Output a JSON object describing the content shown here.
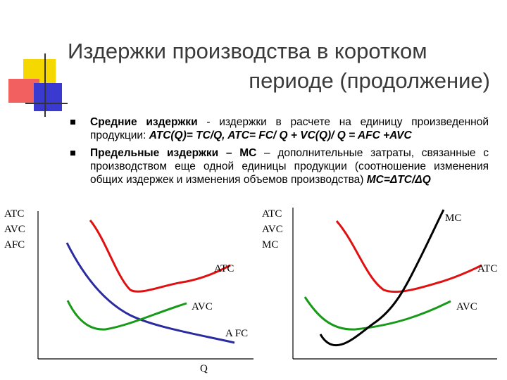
{
  "title": {
    "line1": "Издержки производства в коротком",
    "line2": "периоде (продолжение)"
  },
  "bullets": [
    {
      "term": "Средние издержки",
      "text": " - издержки в расчете на единицу произведенной продукции: ",
      "formula": "ATC(Q)= TC/Q, ATC= FC/ Q + VC(Q)/ Q = AFC +AVC"
    },
    {
      "term": "Предельные издержки – МС",
      "text": " – дополнительные затраты, связанные с производством еще одной единицы продукции (соотношение изменения общих издержек и изменения объемов производства) ",
      "formula": "MC=ΔTC/ΔQ"
    }
  ],
  "left_chart": {
    "y_axis_labels": [
      "ATC",
      "AVC",
      "AFC"
    ],
    "curve_labels": {
      "atc": "ATC",
      "avc": "AVC",
      "afc": "A FC"
    },
    "x_axis_label": "Q"
  },
  "right_chart": {
    "y_axis_labels": [
      "ATC",
      "AVC",
      "MC"
    ],
    "curve_labels": {
      "mc": "MC",
      "atc": "ATC",
      "avc": "AVC"
    }
  },
  "colors": {
    "atc": "#e01010",
    "avc": "#179a17",
    "afc": "#2b2ba0",
    "mc": "#000000",
    "deco_yellow": "#f5d800",
    "deco_red": "#f03a3a",
    "deco_blue": "#3a3ad0"
  }
}
